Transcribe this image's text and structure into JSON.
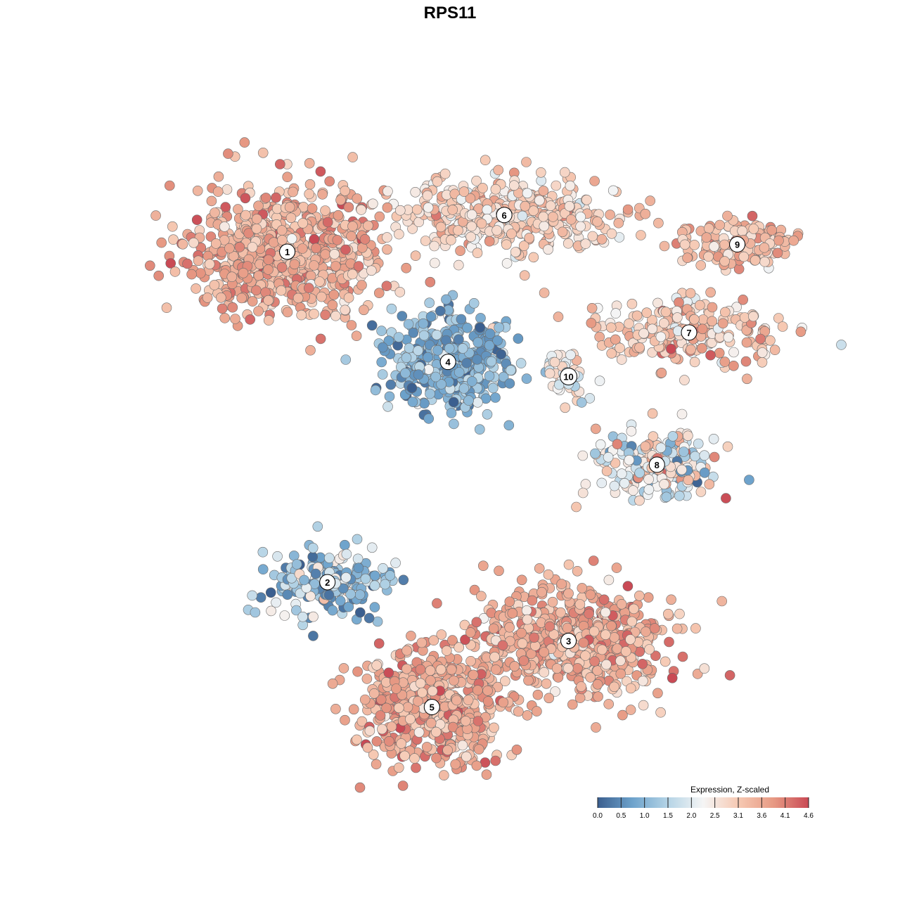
{
  "chart_data": {
    "type": "scatter",
    "title": "RPS11",
    "legend": {
      "title": "Expression, Z-scaled",
      "placement": "bottom-right",
      "ticks": [
        "0.0",
        "0.5",
        "1.0",
        "1.5",
        "2.0",
        "2.5",
        "3.1",
        "3.6",
        "4.1",
        "4.6"
      ],
      "range": [
        0.0,
        4.6
      ]
    },
    "color_scale": [
      "#3b5f8f",
      "#6ea3cc",
      "#b5d4e6",
      "#f5f5f5",
      "#f6c9b3",
      "#e79a84",
      "#c94a55"
    ],
    "grid": false,
    "axes_visible": false,
    "clusters": [
      {
        "label": "1",
        "center": [
          -1.0,
          1.7
        ],
        "spread": [
          0.55,
          0.42
        ],
        "mean_expr": 3.5,
        "sd_expr": 0.45,
        "n": 700
      },
      {
        "label": "2",
        "center": [
          -0.75,
          -0.55
        ],
        "spread": [
          0.33,
          0.22
        ],
        "mean_expr": 1.4,
        "sd_expr": 0.7,
        "n": 200
      },
      {
        "label": "3",
        "center": [
          0.75,
          -0.95
        ],
        "spread": [
          0.55,
          0.35
        ],
        "mean_expr": 3.5,
        "sd_expr": 0.45,
        "n": 650
      },
      {
        "label": "4",
        "center": [
          0.0,
          0.95
        ],
        "spread": [
          0.35,
          0.3
        ],
        "mean_expr": 1.0,
        "sd_expr": 0.5,
        "n": 420
      },
      {
        "label": "5",
        "center": [
          -0.1,
          -1.4
        ],
        "spread": [
          0.4,
          0.35
        ],
        "mean_expr": 3.6,
        "sd_expr": 0.45,
        "n": 520
      },
      {
        "label": "6",
        "center": [
          0.35,
          1.95
        ],
        "spread": [
          0.6,
          0.22
        ],
        "mean_expr": 3.0,
        "sd_expr": 0.45,
        "n": 420
      },
      {
        "label": "7",
        "center": [
          1.5,
          1.15
        ],
        "spread": [
          0.55,
          0.2
        ],
        "mean_expr": 3.1,
        "sd_expr": 0.55,
        "n": 220
      },
      {
        "label": "8",
        "center": [
          1.3,
          0.25
        ],
        "spread": [
          0.35,
          0.22
        ],
        "mean_expr": 2.3,
        "sd_expr": 0.9,
        "n": 200
      },
      {
        "label": "9",
        "center": [
          1.8,
          1.75
        ],
        "spread": [
          0.35,
          0.15
        ],
        "mean_expr": 3.3,
        "sd_expr": 0.4,
        "n": 140
      },
      {
        "label": "10",
        "center": [
          0.75,
          0.85
        ],
        "spread": [
          0.12,
          0.13
        ],
        "mean_expr": 2.3,
        "sd_expr": 0.45,
        "n": 45
      }
    ],
    "xlim": [
      -2.0,
      2.2
    ],
    "ylim": [
      -1.9,
      2.6
    ]
  }
}
